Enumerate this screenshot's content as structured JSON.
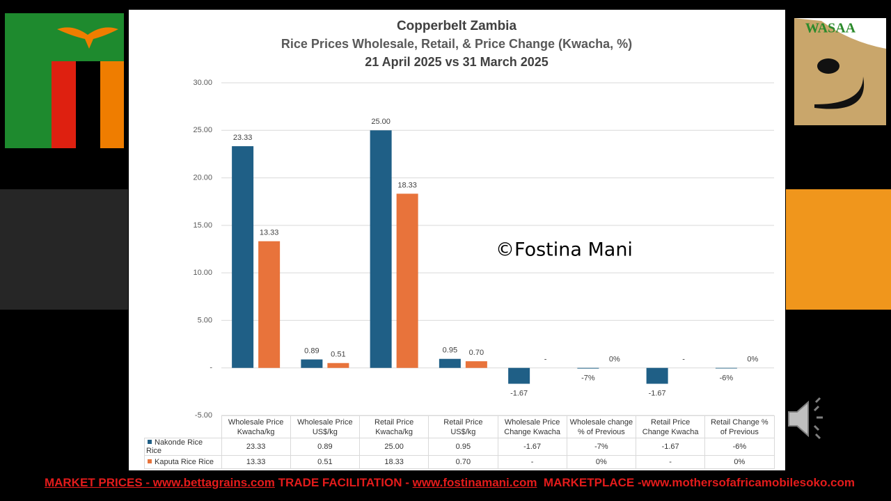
{
  "logo": "WASAA",
  "watermark": "©Fostina Mani",
  "footer": {
    "market_prices": "MARKET PRICES - www.bettagrains.com",
    "trade_facilitation": "TRADE FACILITATION -",
    "fostinamani_link": "www.fostinamani.com",
    "marketplace": "MARKETPLACE -www.mothersofafricamobilesoko.com"
  },
  "chart_data": {
    "type": "bar",
    "title": "Copperbelt Zambia",
    "subtitle": "Rice Prices Wholesale, Retail, & Price Change (Kwacha, %)",
    "date_range": "21 April 2025 vs 31 March 2025",
    "categories": [
      "Wholesale Price Kwacha/kg",
      "Wholesale Price US$/kg",
      "Retail Price Kwacha/kg",
      "Retail Price US$/kg",
      "Wholesale Price Change Kwacha",
      "Wholesale change % of Previous",
      "Retail Price Change Kwacha",
      "Retail Change % of Previous"
    ],
    "series": [
      {
        "name": "Nakonde Rice Rice",
        "color": "#1f5f86",
        "values": [
          23.33,
          0.89,
          25.0,
          0.95,
          -1.67,
          -0.07,
          -1.67,
          -0.06
        ],
        "value_labels": [
          "23.33",
          "0.89",
          "25.00",
          "0.95",
          "-1.67",
          "-7%",
          "-1.67",
          "-6%"
        ]
      },
      {
        "name": "Kaputa Rice Rice",
        "color": "#e8733b",
        "values": [
          13.33,
          0.51,
          18.33,
          0.7,
          0,
          0,
          0,
          0
        ],
        "value_labels": [
          "13.33",
          "0.51",
          "18.33",
          "0.70",
          "-",
          "0%",
          "-",
          "0%"
        ]
      }
    ],
    "ylim": [
      -5,
      30
    ],
    "yticks": [
      {
        "value": -5,
        "label": "-5.00"
      },
      {
        "value": 0,
        "label": "-"
      },
      {
        "value": 5,
        "label": "5.00"
      },
      {
        "value": 10,
        "label": "10.00"
      },
      {
        "value": 15,
        "label": "15.00"
      },
      {
        "value": 20,
        "label": "20.00"
      },
      {
        "value": 25,
        "label": "25.00"
      },
      {
        "value": 30,
        "label": "30.00"
      }
    ],
    "grid": true,
    "data_table": true
  }
}
